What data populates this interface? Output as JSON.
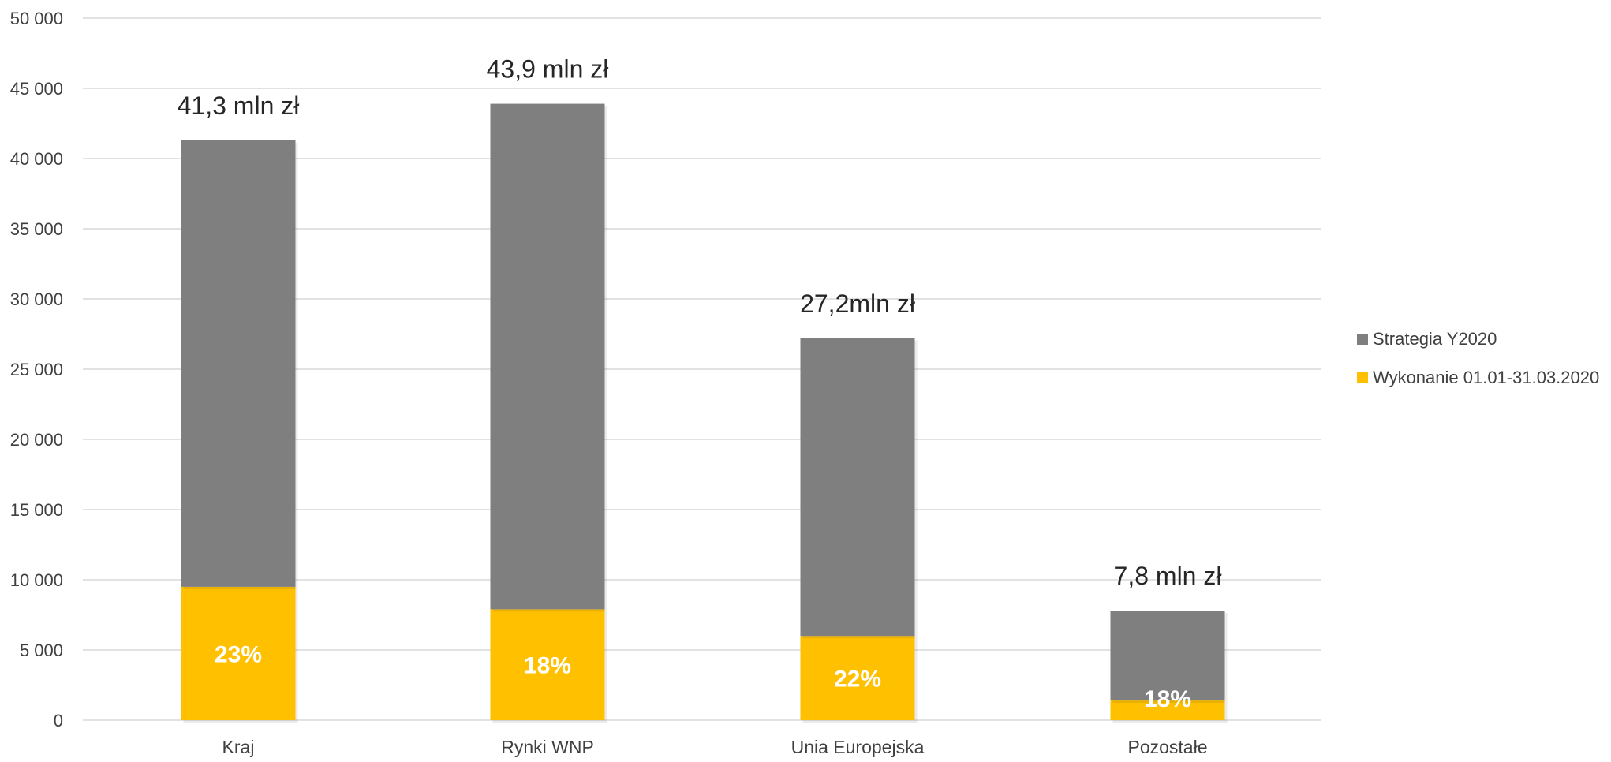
{
  "chart_data": {
    "type": "bar",
    "stacked": true,
    "categories": [
      "Kraj",
      "Rynki WNP",
      "Unia Europejska",
      "Pozostałe"
    ],
    "series": [
      {
        "name": "Wykonanie 01.01-31.03.2020",
        "color": "#FFC000",
        "values": [
          9500,
          7900,
          6000,
          1400
        ]
      },
      {
        "name": "Strategia Y2020",
        "color": "#7F7F7F",
        "values": [
          31800,
          36000,
          21200,
          6400
        ]
      }
    ],
    "totals": [
      41300,
      43900,
      27200,
      7800
    ],
    "total_labels": [
      "41,3 mln zł",
      "43,9 mln zł",
      "27,2mln zł",
      "7,8 mln zł"
    ],
    "percent_labels": [
      "23%",
      "18%",
      "22%",
      "18%"
    ],
    "ylim": [
      0,
      50000
    ],
    "ytick_step": 5000,
    "ytick_labels": [
      "0",
      "5 000",
      "10 000",
      "15 000",
      "20 000",
      "25 000",
      "30 000",
      "35 000",
      "40 000",
      "45 000",
      "50 000"
    ],
    "grid": true,
    "gridline_color": "#D9D9D9",
    "legend_position": "right",
    "legend_order": [
      "Strategia Y2020",
      "Wykonanie 01.01-31.03.2020"
    ]
  }
}
